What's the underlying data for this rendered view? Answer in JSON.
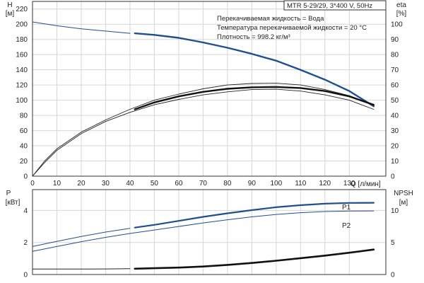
{
  "model_label": "MTR 5-29/29, 3*400 V, 50Hz",
  "conditions": [
    "Перекачиваемая жидкость = Вода",
    "Температура перекачиваемой жидкости = 20 °C",
    "Плотность = 998.2 кг/м³"
  ],
  "chart_data": [
    {
      "type": "line",
      "panel": "top",
      "xlabel": "Q [л/мин]",
      "xlim": [
        0,
        145
      ],
      "x_ticks": [
        0,
        10,
        20,
        30,
        40,
        50,
        60,
        70,
        80,
        90,
        100,
        110,
        120,
        130
      ],
      "y_left": {
        "label": [
          "H",
          "[м]"
        ],
        "lim": [
          0,
          230
        ],
        "ticks": [
          0,
          20,
          40,
          60,
          80,
          100,
          120,
          140,
          160,
          180,
          200,
          220
        ]
      },
      "y_right": {
        "label": [
          "eta",
          "[%]"
        ],
        "lim": [
          0,
          115
        ],
        "ticks": [
          0,
          10,
          20,
          30,
          40,
          50,
          60,
          70,
          80,
          90,
          100
        ]
      },
      "grid": true,
      "series": [
        {
          "axis": "left",
          "color": "#1f4f8f",
          "width": 1.0,
          "x": [
            0,
            10,
            20,
            30,
            40
          ],
          "y": [
            203,
            198,
            194,
            191,
            188
          ]
        },
        {
          "axis": "left",
          "color": "#1f4f8f",
          "width": 2.4,
          "x": [
            42,
            50,
            60,
            70,
            80,
            90,
            100,
            110,
            120,
            130,
            140
          ],
          "y": [
            188,
            186,
            182,
            176,
            169,
            161,
            152,
            140,
            127,
            112,
            92
          ]
        },
        {
          "axis": "right",
          "color": "#222222",
          "width": 0.9,
          "x": [
            0,
            5,
            10,
            20,
            30,
            40,
            50,
            60,
            70,
            80,
            90,
            100,
            110,
            120,
            130,
            140
          ],
          "y": [
            0,
            10,
            18,
            29,
            37,
            44,
            50,
            54,
            57.5,
            60,
            61,
            61.2,
            60,
            57,
            53,
            47
          ]
        },
        {
          "axis": "right",
          "color": "#222222",
          "width": 0.9,
          "x": [
            0,
            5,
            10,
            20,
            30,
            40,
            50,
            60,
            70,
            80,
            90,
            100,
            110,
            120,
            130,
            140
          ],
          "y": [
            0,
            9,
            17,
            28,
            36,
            42,
            47,
            50.5,
            53.5,
            55.5,
            57,
            57.2,
            56,
            53.5,
            50,
            44
          ]
        },
        {
          "axis": "right",
          "color": "#111111",
          "width": 2.4,
          "x": [
            42,
            50,
            60,
            70,
            80,
            90,
            100,
            110,
            120,
            130,
            140
          ],
          "y": [
            44,
            48.5,
            52.5,
            55.5,
            57.5,
            58.5,
            58.7,
            58,
            56,
            52.5,
            47
          ]
        }
      ]
    },
    {
      "type": "line",
      "panel": "bottom",
      "xlim": [
        0,
        145
      ],
      "x_ticks": [
        0,
        10,
        20,
        30,
        40,
        50,
        60,
        70,
        80,
        90,
        100,
        110,
        120,
        130
      ],
      "y_left": {
        "label": [
          "P",
          "[кВт]"
        ],
        "lim": [
          0,
          5.3
        ],
        "ticks": [
          0,
          2,
          4
        ]
      },
      "y_right": {
        "label": [
          "NPSH",
          "[м]"
        ],
        "lim": [
          0,
          13.25
        ],
        "ticks": [
          0,
          5,
          10
        ]
      },
      "grid": true,
      "series": [
        {
          "name": "P1",
          "axis": "left",
          "color": "#1f4f8f",
          "width": 1.0,
          "x": [
            0,
            10,
            20,
            30,
            40
          ],
          "y": [
            1.75,
            2.07,
            2.37,
            2.65,
            2.88
          ]
        },
        {
          "name": "P1",
          "axis": "left",
          "color": "#1f4f8f",
          "width": 2.2,
          "x": [
            42,
            50,
            60,
            70,
            80,
            90,
            100,
            110,
            120,
            130,
            140
          ],
          "y": [
            2.93,
            3.1,
            3.35,
            3.6,
            3.82,
            4.02,
            4.2,
            4.33,
            4.42,
            4.47,
            4.48
          ]
        },
        {
          "name": "P2",
          "axis": "left",
          "color": "#1f4f8f",
          "width": 1.0,
          "x": [
            0,
            10,
            20,
            30,
            40,
            50,
            60,
            70,
            80,
            90,
            100,
            110,
            120,
            130,
            140
          ],
          "y": [
            1.45,
            1.75,
            2.05,
            2.32,
            2.56,
            2.78,
            3.0,
            3.22,
            3.42,
            3.6,
            3.75,
            3.86,
            3.93,
            3.96,
            3.97
          ]
        },
        {
          "axis": "right",
          "color": "#222222",
          "width": 1.0,
          "x": [
            0,
            10,
            20,
            30,
            40
          ],
          "y": [
            0.85,
            0.85,
            0.85,
            0.87,
            0.9
          ]
        },
        {
          "axis": "right",
          "color": "#111111",
          "width": 2.6,
          "x": [
            42,
            50,
            60,
            70,
            80,
            90,
            100,
            110,
            120,
            130,
            140
          ],
          "y": [
            0.9,
            0.98,
            1.08,
            1.25,
            1.5,
            1.8,
            2.15,
            2.55,
            2.95,
            3.4,
            3.9
          ]
        }
      ]
    }
  ]
}
